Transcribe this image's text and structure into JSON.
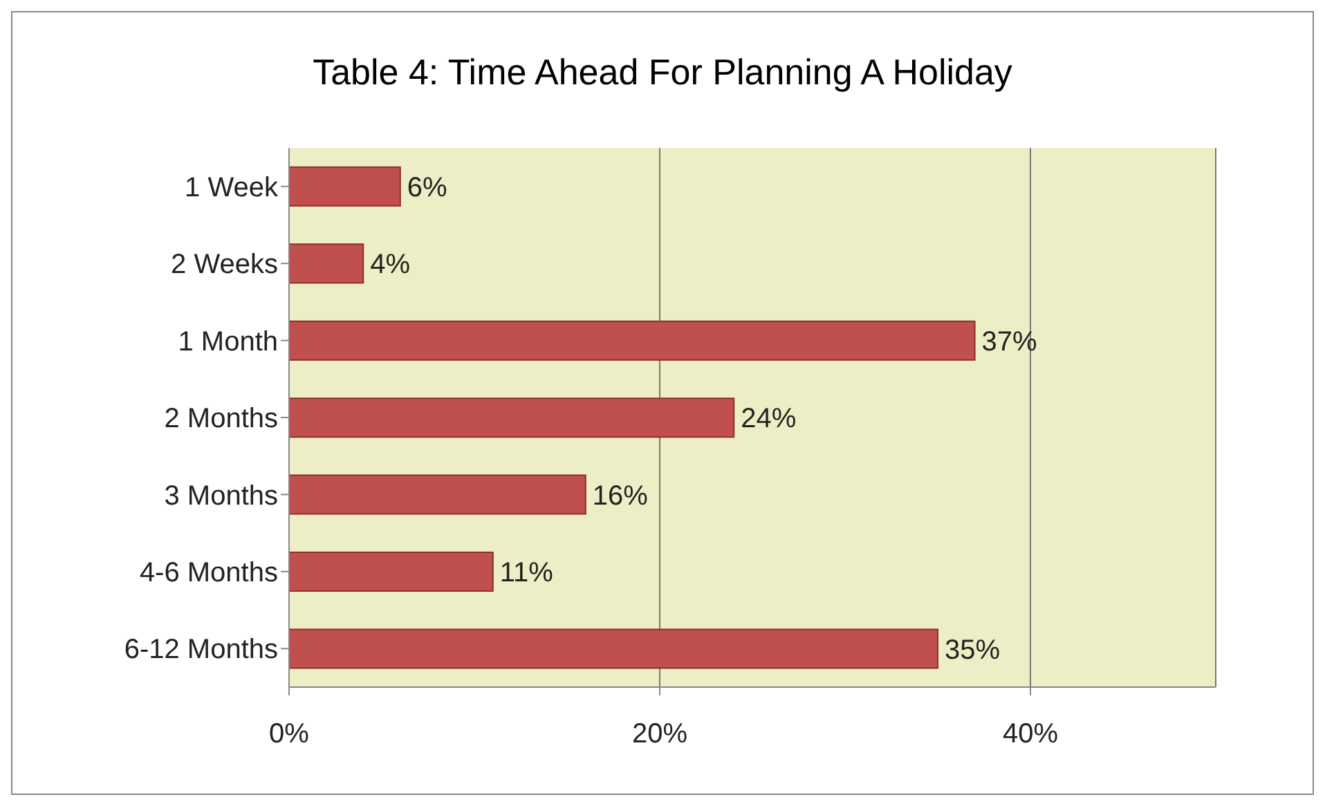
{
  "chart_data": {
    "type": "bar",
    "orientation": "horizontal",
    "title": "Table 4: Time Ahead For Planning A Holiday",
    "categories": [
      "1 Week",
      "2 Weeks",
      "1 Month",
      "2 Months",
      "3 Months",
      "4-6 Months",
      "6-12 Months"
    ],
    "values": [
      6,
      4,
      37,
      24,
      16,
      11,
      35
    ],
    "value_labels": [
      "6%",
      "4%",
      "37%",
      "24%",
      "16%",
      "11%",
      "35%"
    ],
    "color": "#c0504d",
    "xlim": [
      0,
      50
    ],
    "xticks": [
      {
        "value": 0,
        "label": "0%"
      },
      {
        "value": 20,
        "label": "20%"
      },
      {
        "value": 40,
        "label": "40%"
      }
    ],
    "grid": "x"
  }
}
